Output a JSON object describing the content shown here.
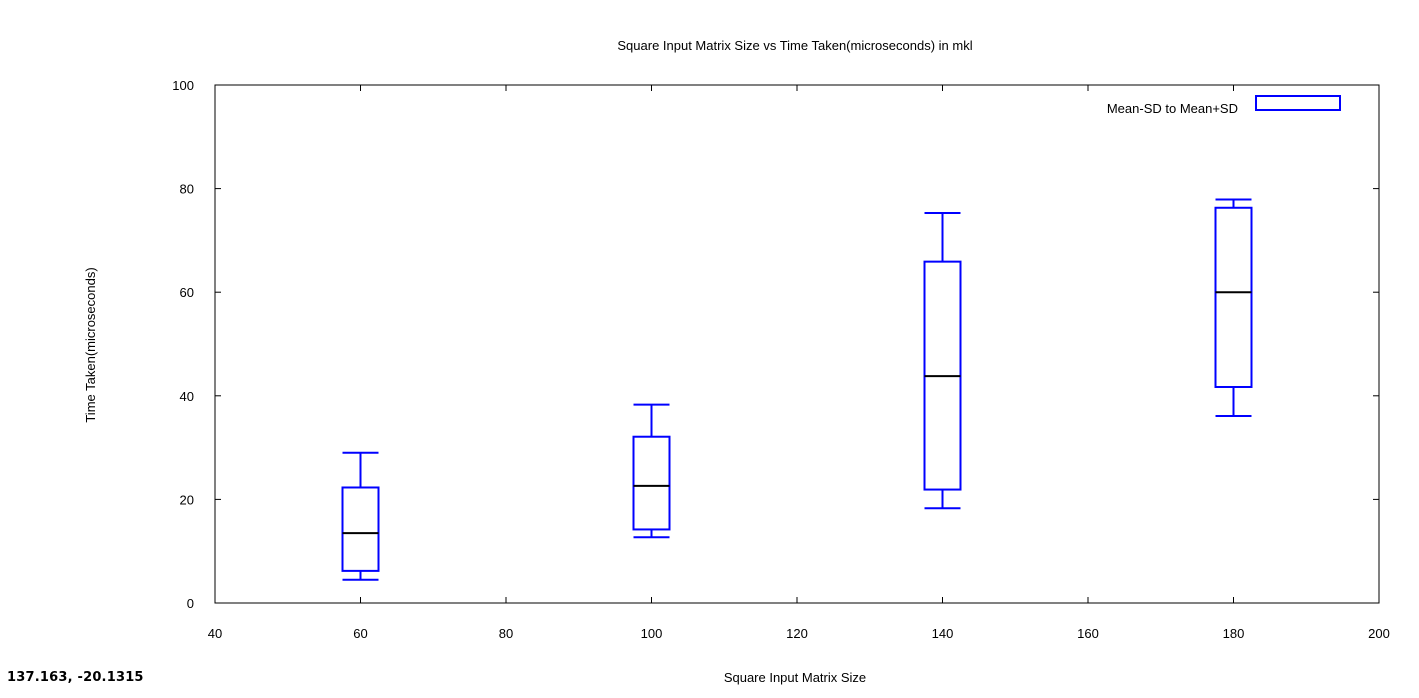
{
  "chart_data": {
    "type": "box",
    "title": "Square Input Matrix Size vs Time Taken(microseconds) in mkl",
    "xlabel": "Square Input Matrix Size",
    "ylabel": "Time Taken(microseconds)",
    "xlim": [
      40,
      200
    ],
    "ylim": [
      0,
      100
    ],
    "xticks": [
      40,
      60,
      80,
      100,
      120,
      140,
      160,
      180,
      200
    ],
    "yticks": [
      0,
      20,
      40,
      60,
      80,
      100
    ],
    "grid": false,
    "legend_position": "top-right",
    "series": [
      {
        "name": "Mean-SD to Mean+SD",
        "color": "#0000ff",
        "boxes": [
          {
            "x": 60,
            "whisker_low": 4.5,
            "box_low": 6.2,
            "median": 13.5,
            "box_high": 22.3,
            "whisker_high": 29.0
          },
          {
            "x": 100,
            "whisker_low": 12.7,
            "box_low": 14.2,
            "median": 22.6,
            "box_high": 32.1,
            "whisker_high": 38.3
          },
          {
            "x": 140,
            "whisker_low": 18.3,
            "box_low": 21.9,
            "median": 43.8,
            "box_high": 65.9,
            "whisker_high": 75.3
          },
          {
            "x": 180,
            "whisker_low": 36.1,
            "box_low": 41.7,
            "median": 60.0,
            "box_high": 76.3,
            "whisker_high": 77.9
          }
        ]
      }
    ]
  },
  "status": {
    "coordinates": "137.163, -20.1315"
  }
}
